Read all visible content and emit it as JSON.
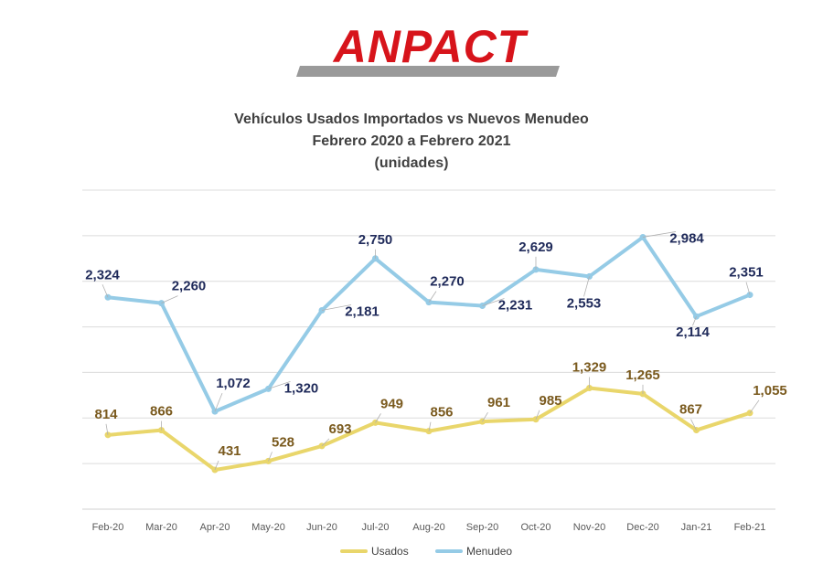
{
  "logo": {
    "text": "ANPACT"
  },
  "chart_data": {
    "type": "line",
    "title": [
      "Vehículos Usados Importados  vs Nuevos Menudeo",
      "Febrero 2020 a Febrero 2021",
      "(unidades)"
    ],
    "categories": [
      "Feb-20",
      "Mar-20",
      "Apr-20",
      "May-20",
      "Jun-20",
      "Jul-20",
      "Aug-20",
      "Sep-20",
      "Oct-20",
      "Nov-20",
      "Dec-20",
      "Jan-21",
      "Feb-21"
    ],
    "ylim": [
      0,
      3500
    ],
    "grid": true,
    "legend_position": "bottom",
    "series": [
      {
        "name": "Usados",
        "color": "#E9D66B",
        "label_color": "#7A5A1E",
        "values": [
          814,
          866,
          431,
          528,
          693,
          949,
          856,
          961,
          985,
          1329,
          1265,
          867,
          1055
        ],
        "labels": [
          "814",
          "866",
          "431",
          "528",
          "693",
          "949",
          "856",
          "961",
          "985",
          "1,329",
          "1,265",
          "867",
          "1,055"
        ]
      },
      {
        "name": "Menudeo",
        "color": "#95CBE6",
        "label_color": "#1F2A5A",
        "values": [
          2324,
          2260,
          1072,
          1320,
          2181,
          2750,
          2270,
          2231,
          2629,
          2553,
          2984,
          2114,
          2351
        ],
        "labels": [
          "2,324",
          "2,260",
          "1,072",
          "1,320",
          "2,181",
          "2,750",
          "2,270",
          "2,231",
          "2,629",
          "2,553",
          "2,984",
          "2,114",
          "2,351"
        ]
      }
    ]
  }
}
